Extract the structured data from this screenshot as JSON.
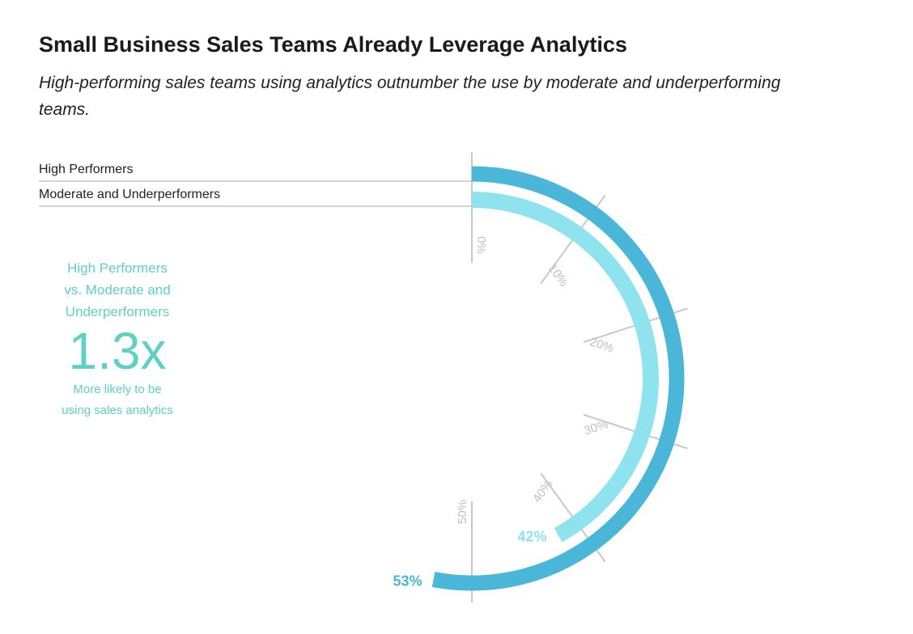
{
  "title": "Small Business Sales Teams Already Leverage Analytics",
  "subtitle": "High-performing sales teams using analytics outnumber the use by moderate and underperforming teams.",
  "callout": {
    "line1": "High Performers",
    "line2": "vs. Moderate and",
    "line3": "Underperformers",
    "value": "1.3x",
    "sub1": "More likely to be",
    "sub2": "using sales analytics"
  },
  "chart_data": {
    "type": "radial-bar",
    "title": "Small Business Sales Teams Already Leverage Analytics",
    "categories": [
      "High Performers",
      "Moderate and Underperformers"
    ],
    "values": [
      53,
      42
    ],
    "value_labels": [
      "53%",
      "42%"
    ],
    "colors": [
      "#4ab7d8",
      "#8ee3ee"
    ],
    "ticks": [
      0,
      10,
      20,
      30,
      40,
      50
    ],
    "tick_labels": [
      "0%",
      "10%",
      "20%",
      "30%",
      "40%",
      "50%"
    ],
    "range": [
      0,
      50
    ],
    "legend_position": "top-left"
  }
}
